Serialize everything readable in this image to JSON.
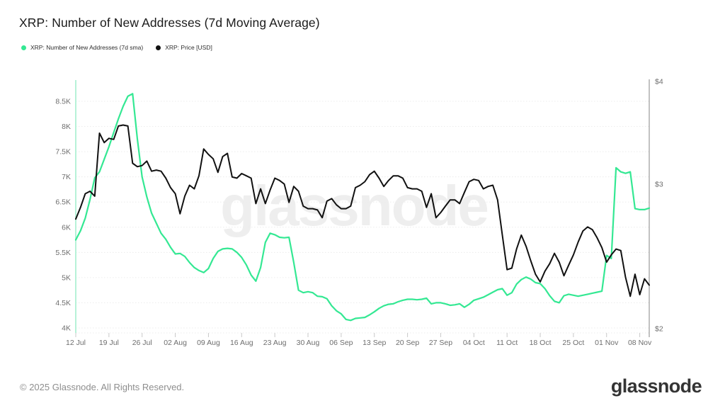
{
  "header": {
    "title": "XRP: Number of New Addresses (7d Moving Average)"
  },
  "legend": [
    {
      "label": "XRP: Number of New Addresses (7d sma)",
      "color": "#34e893"
    },
    {
      "label": "XRP: Price [USD]",
      "color": "#111111"
    }
  ],
  "watermark": "glassnode",
  "footer": {
    "copyright": "© 2025 Glassnode. All Rights Reserved.",
    "brand": "glassnode"
  },
  "chart_data": {
    "type": "line",
    "title": "XRP: Number of New Addresses (7d Moving Average)",
    "grid": true,
    "legend_position": "top-left",
    "colors": {
      "grid": "#ececec",
      "axis_text": "#6e6e6e",
      "left_axis_line": "#b7f2d8",
      "right_axis_line": "#9a9a9a",
      "tick": "#c9c9c9"
    },
    "x_ticks": [
      {
        "label": "12 Jul",
        "day": 0
      },
      {
        "label": "19 Jul",
        "day": 7
      },
      {
        "label": "26 Jul",
        "day": 14
      },
      {
        "label": "02 Aug",
        "day": 21
      },
      {
        "label": "09 Aug",
        "day": 28
      },
      {
        "label": "16 Aug",
        "day": 35
      },
      {
        "label": "23 Aug",
        "day": 42
      },
      {
        "label": "30 Aug",
        "day": 49
      },
      {
        "label": "06 Sep",
        "day": 56
      },
      {
        "label": "13 Sep",
        "day": 63
      },
      {
        "label": "20 Sep",
        "day": 70
      },
      {
        "label": "27 Sep",
        "day": 77
      },
      {
        "label": "04 Oct",
        "day": 84
      },
      {
        "label": "11 Oct",
        "day": 91
      },
      {
        "label": "18 Oct",
        "day": 98
      },
      {
        "label": "25 Oct",
        "day": 105
      },
      {
        "label": "01 Nov",
        "day": 112
      },
      {
        "label": "08 Nov",
        "day": 119
      }
    ],
    "left_axis": {
      "scale": "linear",
      "range": [
        4000,
        8500
      ],
      "ticks": [
        {
          "label": "8.5K",
          "value": 8500
        },
        {
          "label": "8K",
          "value": 8000
        },
        {
          "label": "7.5K",
          "value": 7500
        },
        {
          "label": "7K",
          "value": 7000
        },
        {
          "label": "6.5K",
          "value": 6500
        },
        {
          "label": "6K",
          "value": 6000
        },
        {
          "label": "5.5K",
          "value": 5500
        },
        {
          "label": "5K",
          "value": 5000
        },
        {
          "label": "4.5K",
          "value": 4500
        },
        {
          "label": "4K",
          "value": 4000
        }
      ]
    },
    "right_axis": {
      "scale": "log",
      "range": [
        2,
        4
      ],
      "ticks": [
        {
          "label": "$4",
          "value": 4
        },
        {
          "label": "$3",
          "value": 3
        },
        {
          "label": "$2",
          "value": 2
        }
      ]
    },
    "series": [
      {
        "name": "XRP: Number of New Addresses (7d sma)",
        "axis": "left",
        "color": "#34e893",
        "stroke_width": 2.2,
        "values": [
          5750,
          5930,
          6180,
          6550,
          6980,
          7100,
          7350,
          7600,
          7880,
          8150,
          8400,
          8600,
          8650,
          7750,
          7000,
          6600,
          6280,
          6080,
          5880,
          5760,
          5600,
          5470,
          5480,
          5420,
          5300,
          5200,
          5140,
          5100,
          5180,
          5380,
          5520,
          5570,
          5580,
          5570,
          5500,
          5400,
          5250,
          5050,
          4930,
          5200,
          5700,
          5880,
          5850,
          5800,
          5790,
          5800,
          5300,
          4750,
          4700,
          4720,
          4700,
          4630,
          4620,
          4580,
          4440,
          4340,
          4280,
          4170,
          4150,
          4190,
          4200,
          4210,
          4260,
          4320,
          4390,
          4440,
          4470,
          4480,
          4520,
          4550,
          4570,
          4570,
          4560,
          4570,
          4590,
          4480,
          4500,
          4500,
          4480,
          4450,
          4460,
          4480,
          4410,
          4470,
          4550,
          4580,
          4610,
          4660,
          4710,
          4760,
          4780,
          4650,
          4700,
          4870,
          4960,
          5010,
          4970,
          4900,
          4880,
          4780,
          4640,
          4530,
          4500,
          4640,
          4670,
          4650,
          4630,
          4650,
          4670,
          4690,
          4710,
          4730,
          5440,
          5380,
          7180,
          7100,
          7070,
          7100,
          6370,
          6350,
          6350,
          6380
        ]
      },
      {
        "name": "XRP: Price [USD]",
        "axis": "right",
        "color": "#111111",
        "stroke_width": 2,
        "values": [
          2.72,
          2.81,
          2.92,
          2.94,
          2.9,
          3.46,
          3.37,
          3.41,
          3.4,
          3.53,
          3.54,
          3.53,
          3.18,
          3.15,
          3.16,
          3.2,
          3.11,
          3.12,
          3.11,
          3.05,
          2.97,
          2.92,
          2.76,
          2.9,
          2.99,
          2.96,
          3.07,
          3.31,
          3.26,
          3.22,
          3.1,
          3.24,
          3.27,
          3.06,
          3.05,
          3.09,
          3.07,
          3.05,
          2.84,
          2.96,
          2.84,
          2.95,
          3.05,
          3.03,
          3.0,
          2.85,
          2.98,
          2.94,
          2.82,
          2.8,
          2.8,
          2.79,
          2.73,
          2.86,
          2.88,
          2.83,
          2.8,
          2.8,
          2.82,
          2.97,
          2.99,
          3.02,
          3.08,
          3.11,
          3.05,
          2.98,
          3.03,
          3.07,
          3.07,
          3.05,
          2.97,
          2.96,
          2.96,
          2.94,
          2.81,
          2.92,
          2.73,
          2.77,
          2.82,
          2.87,
          2.87,
          2.84,
          2.93,
          3.02,
          3.04,
          3.03,
          2.96,
          2.98,
          2.99,
          2.87,
          2.6,
          2.36,
          2.37,
          2.5,
          2.6,
          2.52,
          2.42,
          2.33,
          2.28,
          2.35,
          2.4,
          2.47,
          2.41,
          2.32,
          2.39,
          2.46,
          2.55,
          2.63,
          2.66,
          2.64,
          2.58,
          2.51,
          2.41,
          2.46,
          2.5,
          2.49,
          2.31,
          2.19,
          2.33,
          2.2,
          2.3,
          2.26
        ]
      }
    ]
  }
}
